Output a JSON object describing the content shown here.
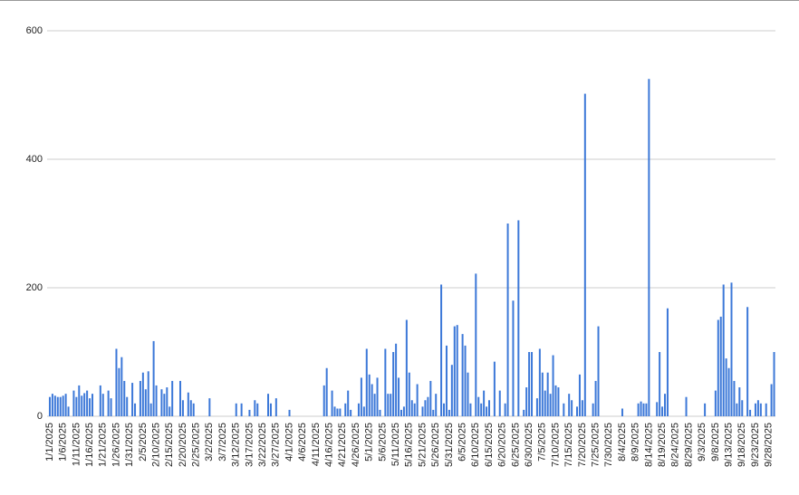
{
  "chart_data": {
    "type": "bar",
    "color": "#3c78d8",
    "ylim": [
      0,
      600
    ],
    "yticks": [
      0,
      200,
      400,
      600
    ],
    "grid": true,
    "categories": [
      "1/1/2025",
      null,
      null,
      null,
      null,
      "1/6/2025",
      null,
      null,
      null,
      null,
      "1/11/2025",
      null,
      null,
      null,
      null,
      "1/16/2025",
      null,
      null,
      null,
      null,
      "1/21/2025",
      null,
      null,
      null,
      null,
      "1/26/2025",
      null,
      null,
      null,
      null,
      "1/31/2025",
      null,
      null,
      null,
      null,
      "2/5/2025",
      null,
      null,
      null,
      null,
      "2/10/2025",
      null,
      null,
      null,
      null,
      "2/15/2025",
      null,
      null,
      null,
      null,
      "2/20/2025",
      null,
      null,
      null,
      null,
      "2/25/2025",
      null,
      null,
      null,
      null,
      "3/2/2025",
      null,
      null,
      null,
      null,
      "3/7/2025",
      null,
      null,
      null,
      null,
      "3/12/2025",
      null,
      null,
      null,
      null,
      "3/17/2025",
      null,
      null,
      null,
      null,
      "3/22/2025",
      null,
      null,
      null,
      null,
      "3/27/2025",
      null,
      null,
      null,
      null,
      "4/1/2025",
      null,
      null,
      null,
      null,
      "4/6/2025",
      null,
      null,
      null,
      null,
      "4/11/2025",
      null,
      null,
      null,
      null,
      "4/16/2025",
      null,
      null,
      null,
      null,
      "4/21/2025",
      null,
      null,
      null,
      null,
      "4/26/2025",
      null,
      null,
      null,
      null,
      "5/1/2025",
      null,
      null,
      null,
      null,
      "5/6/2025",
      null,
      null,
      null,
      null,
      "5/11/2025",
      null,
      null,
      null,
      null,
      "5/16/2025",
      null,
      null,
      null,
      null,
      "5/21/2025",
      null,
      null,
      null,
      null,
      "5/26/2025",
      null,
      null,
      null,
      null,
      "5/31/2025",
      null,
      null,
      null,
      null,
      "6/5/2025",
      null,
      null,
      null,
      null,
      "6/10/2025",
      null,
      null,
      null,
      null,
      "6/15/2025",
      null,
      null,
      null,
      null,
      "6/20/2025",
      null,
      null,
      null,
      null,
      "6/25/2025",
      null,
      null,
      null,
      null,
      "6/30/2025",
      null,
      null,
      null,
      null,
      "7/5/2025",
      null,
      null,
      null,
      null,
      "7/10/2025",
      null,
      null,
      null,
      null,
      "7/15/2025",
      null,
      null,
      null,
      null,
      "7/20/2025",
      null,
      null,
      null,
      null,
      "7/25/2025",
      null,
      null,
      null,
      null,
      "7/30/2025",
      null,
      null,
      null,
      null,
      "8/4/2025",
      null,
      null,
      null,
      null,
      "8/9/2025",
      null,
      null,
      null,
      null,
      "8/14/2025",
      null,
      null,
      null,
      null,
      "8/19/2025",
      null,
      null,
      null,
      null,
      "8/24/2025",
      null,
      null,
      null,
      null,
      "8/29/2025",
      null,
      null,
      null,
      null,
      "9/3/2025",
      null,
      null,
      null,
      null,
      "9/8/2025",
      null,
      null,
      null,
      null,
      "9/13/2025",
      null,
      null,
      null,
      null,
      "9/18/2025",
      null,
      null,
      null,
      null,
      "9/23/2025",
      null,
      null,
      null,
      null,
      "9/28/2025",
      null,
      null
    ],
    "values": [
      30,
      35,
      32,
      30,
      30,
      32,
      35,
      15,
      0,
      40,
      30,
      48,
      32,
      36,
      40,
      28,
      35,
      0,
      0,
      48,
      35,
      0,
      40,
      28,
      0,
      105,
      75,
      92,
      55,
      30,
      0,
      52,
      20,
      0,
      55,
      68,
      42,
      70,
      20,
      117,
      48,
      0,
      42,
      35,
      45,
      15,
      55,
      0,
      0,
      55,
      25,
      0,
      37,
      25,
      20,
      0,
      0,
      0,
      0,
      0,
      28,
      0,
      0,
      0,
      0,
      0,
      0,
      0,
      0,
      0,
      20,
      0,
      20,
      0,
      0,
      10,
      0,
      25,
      20,
      0,
      0,
      0,
      35,
      20,
      0,
      28,
      0,
      0,
      0,
      0,
      10,
      0,
      0,
      0,
      0,
      0,
      0,
      0,
      0,
      0,
      0,
      0,
      0,
      48,
      75,
      0,
      40,
      15,
      12,
      12,
      0,
      20,
      40,
      10,
      0,
      0,
      20,
      60,
      15,
      105,
      65,
      50,
      35,
      60,
      10,
      0,
      105,
      35,
      35,
      100,
      113,
      60,
      10,
      15,
      150,
      68,
      25,
      20,
      50,
      0,
      15,
      25,
      30,
      55,
      10,
      35,
      0,
      205,
      20,
      110,
      10,
      80,
      140,
      142,
      0,
      128,
      110,
      68,
      20,
      0,
      222,
      30,
      20,
      40,
      15,
      25,
      0,
      85,
      0,
      40,
      0,
      20,
      300,
      0,
      180,
      0,
      305,
      0,
      10,
      45,
      100,
      100,
      0,
      28,
      105,
      68,
      40,
      68,
      35,
      95,
      48,
      45,
      0,
      20,
      0,
      35,
      25,
      0,
      15,
      65,
      25,
      502,
      0,
      0,
      20,
      55,
      140,
      0,
      0,
      0,
      0,
      0,
      0,
      0,
      0,
      12,
      0,
      0,
      0,
      0,
      0,
      20,
      23,
      20,
      20,
      525,
      0,
      0,
      22,
      100,
      15,
      35,
      168,
      0,
      0,
      0,
      0,
      0,
      0,
      30,
      0,
      0,
      0,
      0,
      0,
      0,
      20,
      0,
      0,
      0,
      40,
      150,
      155,
      205,
      90,
      75,
      208,
      55,
      20,
      45,
      25,
      0,
      170,
      10,
      0,
      20,
      25,
      20,
      0,
      20,
      0,
      50,
      100
    ]
  }
}
